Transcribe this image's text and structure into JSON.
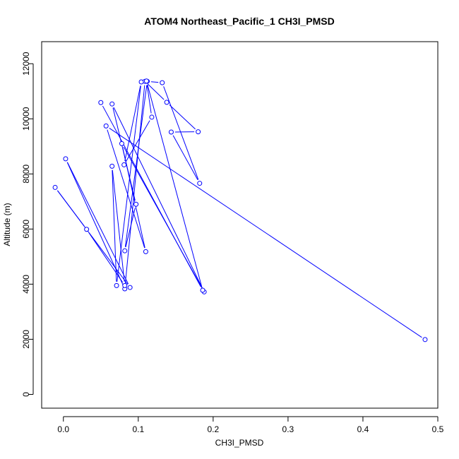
{
  "chart_data": {
    "type": "line",
    "title": "ATOM4 Northeast_Pacific_1 CH3I_PMSD",
    "xlabel": "CH3I_PMSD",
    "ylabel": "Altitude (m)",
    "xlim": [
      -0.029,
      0.5
    ],
    "ylim": [
      -500,
      12800
    ],
    "xticks": [
      0.0,
      0.1,
      0.2,
      0.3,
      0.4,
      0.5
    ],
    "xtick_labels": [
      "0.0",
      "0.1",
      "0.2",
      "0.3",
      "0.4",
      "0.5"
    ],
    "yticks": [
      0,
      2000,
      4000,
      6000,
      8000,
      10000,
      12000
    ],
    "ytick_labels": [
      "0",
      "2000",
      "4000",
      "6000",
      "8000",
      "10000",
      "12000"
    ],
    "color": "#0000ff",
    "grid": false,
    "series": [
      {
        "points": [
          [
            0.483,
            1990
          ],
          [
            0.057,
            9740
          ],
          [
            0.11,
            5180
          ],
          [
            0.078,
            9100
          ],
          [
            0.188,
            3720
          ],
          [
            0.065,
            10540
          ],
          [
            0.097,
            6900
          ],
          [
            0.082,
            5210
          ],
          [
            0.112,
            11360
          ],
          [
            0.132,
            11310
          ],
          [
            0.182,
            7660
          ],
          [
            0.144,
            9520
          ],
          [
            0.18,
            9530
          ],
          [
            0.138,
            10600
          ],
          [
            0.109,
            11360
          ],
          [
            0.082,
            3830
          ],
          [
            0.003,
            8550
          ],
          [
            0.089,
            3880
          ],
          [
            -0.011,
            7510
          ],
          [
            0.031,
            5990
          ],
          [
            0.082,
            3950
          ],
          [
            0.065,
            8280
          ],
          [
            0.071,
            3950
          ],
          [
            0.104,
            11340
          ],
          [
            0.081,
            8330
          ],
          [
            0.118,
            10060
          ],
          [
            0.111,
            11370
          ],
          [
            0.186,
            3780
          ],
          [
            0.05,
            10590
          ]
        ]
      }
    ]
  }
}
